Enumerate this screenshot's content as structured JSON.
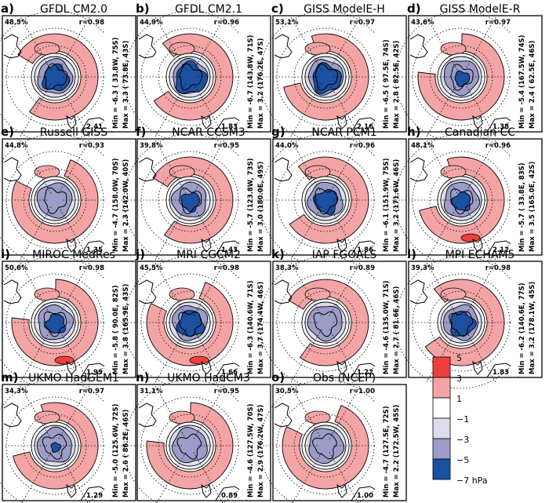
{
  "colors": {
    "strong_pos": "#ef4040",
    "pos": "#f4a4a4",
    "light_neg": "#dcdcec",
    "neg": "#9c9cc8",
    "strong_neg": "#1c50a0",
    "background": "#ffffff",
    "line": "#000000"
  },
  "chart_data": {
    "type": "map",
    "title": "",
    "description_units": "hPa",
    "panels": [
      {
        "letter": "a)",
        "model": "GFDL CM2.0",
        "pct": "48.5%",
        "r": "r=0.98",
        "min_line": "Min = -6.3 ( 33.8W, 75S)",
        "max_line": "Max = 3.3 ( 73.8E, 43S)",
        "rms": "2.41",
        "min": -6.3,
        "max": 3.3
      },
      {
        "letter": "b)",
        "model": "GFDL CM2.1",
        "pct": "44.9%",
        "r": "r=0.96",
        "min_line": "Min = -6.7 (143.8W, 71S)",
        "max_line": "Max = 3.2 (176.2E, 47S)",
        "rms": "1.83",
        "min": -6.7,
        "max": 3.2
      },
      {
        "letter": "c)",
        "model": "GISS ModelE-H",
        "pct": "53.1%",
        "r": "r=0.97",
        "min_line": "Min = -6.5 ( 97.5E, 74S)",
        "max_line": "Max = 2.8 ( 82.5E, 42S)",
        "rms": "2.16",
        "min": -6.5,
        "max": 2.8
      },
      {
        "letter": "d)",
        "model": "GISS ModelE-R",
        "pct": "43.6%",
        "r": "r=0.97",
        "min_line": "Min = -5.4 (167.5W, 74S)",
        "max_line": "Max = 2.4 ( 62.5E, 46S)",
        "rms": "1.38",
        "min": -5.4,
        "max": 2.4
      },
      {
        "letter": "e)",
        "model": "Russell GISS",
        "pct": "44.8%",
        "r": "r=0.93",
        "min_line": "Min = -4.7 (158.0W, 70S)",
        "max_line": "Max = 2.3 (142.0W, 40S)",
        "rms": "1.35",
        "min": -4.7,
        "max": 2.3
      },
      {
        "letter": "f)",
        "model": "NCAR CCSM3",
        "pct": "39.8%",
        "r": "r=0.95",
        "min_line": "Min = -5.7 (123.8W, 73S)",
        "max_line": "Max = 3.0 (180.0E, 49S)",
        "rms": "1.43",
        "min": -5.7,
        "max": 3.0
      },
      {
        "letter": "g)",
        "model": "NCAR PCM1",
        "pct": "44.0%",
        "r": "r=0.96",
        "min_line": "Min = -6.1 (151.9W, 75S)",
        "max_line": "Max = 3.2 (171.6W, 46S)",
        "rms": "1.86",
        "min": -6.1,
        "max": 3.2
      },
      {
        "letter": "h)",
        "model": "Canadian CC",
        "pct": "48.1%",
        "r": "r=0.96",
        "min_line": "Min = -5.7 ( 33.8E, 83S)",
        "max_line": "Max = 3.5 (165.0E, 42S)",
        "rms": "2.12",
        "min": -5.7,
        "max": 3.5
      },
      {
        "letter": "i)",
        "model": "MIROC MedRes",
        "pct": "50.6%",
        "r": "r=0.98",
        "min_line": "Min = -5.8 ( 90.0E, 82S)",
        "max_line": "Max = 3.8 (165.9E, 43S)",
        "rms": "1.99",
        "min": -5.8,
        "max": 3.8
      },
      {
        "letter": "j)",
        "model": "MRI CGCM2",
        "pct": "45.5%",
        "r": "r=0.98",
        "min_line": "Min = -6.3 (140.6W, 71S)",
        "max_line": "Max = 3.7 (174.4W, 46S)",
        "rms": "1.66",
        "min": -6.3,
        "max": 3.7
      },
      {
        "letter": "k)",
        "model": "IAP FGOALS",
        "pct": "38.3%",
        "r": "r=0.89",
        "min_line": "Min = -4.6 (135.0W, 71S)",
        "max_line": "Max = 2.7 ( 81.6E, 46S)",
        "rms": "1.22",
        "min": -4.6,
        "max": 2.7
      },
      {
        "letter": "l)",
        "model": "MPI ECHAM5",
        "pct": "39.3%",
        "r": "r=0.98",
        "min_line": "Min = -6.2 (140.6E, 77S)",
        "max_line": "Max = 3.2 (178.1W, 45S)",
        "rms": "1.83",
        "min": -6.2,
        "max": 3.2
      },
      {
        "letter": "m)",
        "model": "UKMO HadGEM1",
        "pct": "34.3%",
        "r": "r=0.97",
        "min_line": "Min = -5.0 (125.6W, 72S)",
        "max_line": "Max = 2.6 ( 86.2E, 46S)",
        "rms": "1.29",
        "min": -5.0,
        "max": 2.6
      },
      {
        "letter": "n)",
        "model": "UKMO HadCM3",
        "pct": "31.1%",
        "r": "r=0.95",
        "min_line": "Min = -4.6 (127.5W, 70S)",
        "max_line": "Max = 2.9 (176.2W, 47S)",
        "rms": "0.89",
        "min": -4.6,
        "max": 2.9
      },
      {
        "letter": "o)",
        "model": "Obs (NCEP)",
        "pct": "30.5%",
        "r": "r=1.00",
        "min_line": "Min = -4.7 (127.5E, 72S)",
        "max_line": "Max = 2.2 (172.5W, 45S)",
        "rms": "1.00",
        "min": -4.7,
        "max": 2.2
      }
    ],
    "colorbar": {
      "ticks": [
        "5",
        "3",
        "1",
        "−1",
        "−3",
        "−5",
        "−7 hPa"
      ],
      "levels": [
        5,
        3,
        1,
        -1,
        -3,
        -5,
        -7
      ],
      "unit": "hPa"
    }
  }
}
